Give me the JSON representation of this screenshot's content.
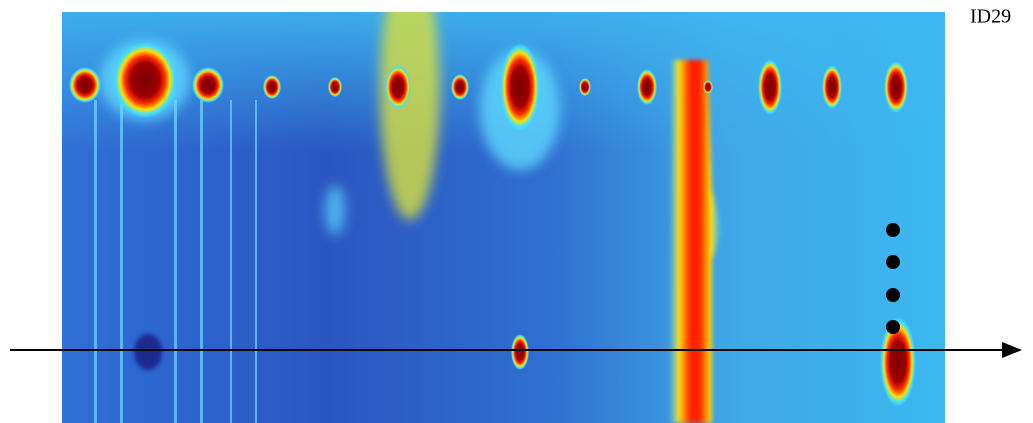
{
  "label": "ID29"
}
